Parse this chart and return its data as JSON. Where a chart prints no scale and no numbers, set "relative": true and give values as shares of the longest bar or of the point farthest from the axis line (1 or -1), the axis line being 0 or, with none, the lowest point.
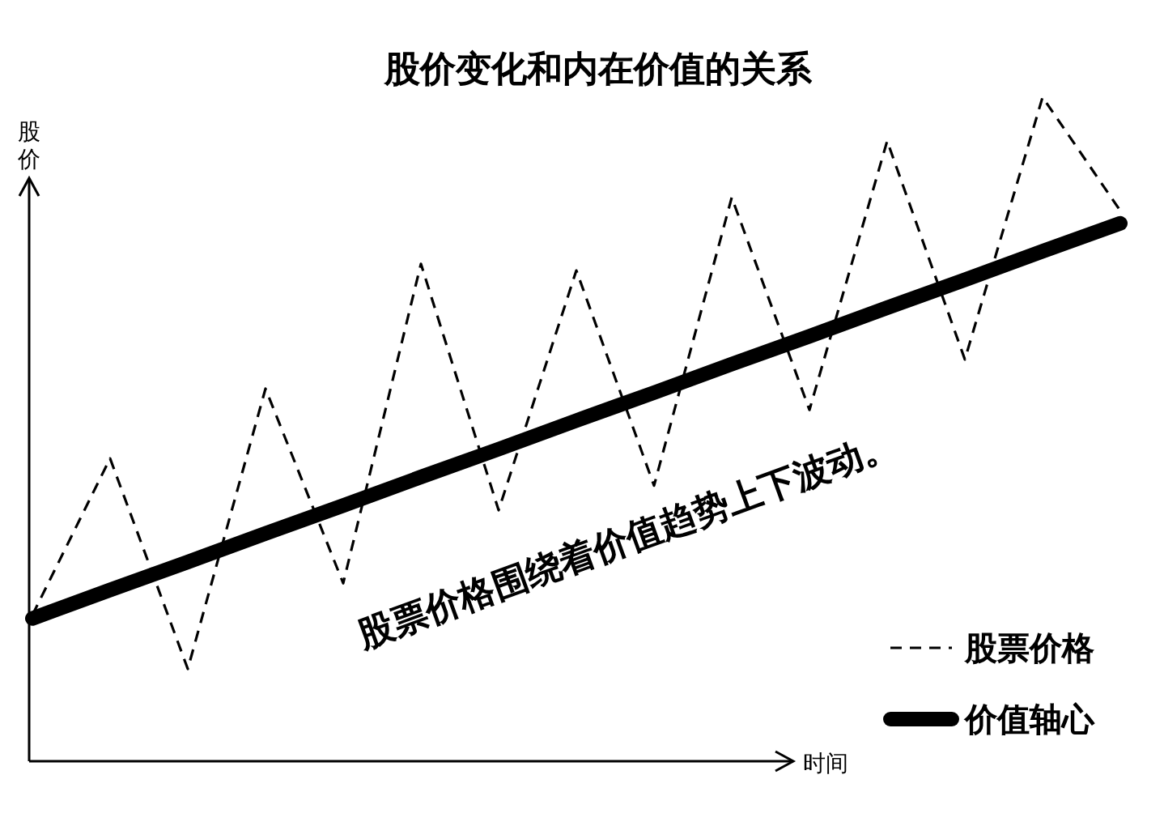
{
  "chart_data": {
    "type": "line",
    "title": "股价变化和内在价值的关系",
    "xlabel": "时间",
    "ylabel": "股价",
    "relative": true,
    "legend": "bottom right",
    "categories": [
      null,
      null,
      null,
      null,
      null,
      null,
      null,
      null,
      null,
      null,
      null,
      null,
      null,
      null,
      null
    ],
    "annotations": [
      "股票价格围绕着价值趋势上下波动。"
    ],
    "series": [
      {
        "name": "股票价格",
        "color": "#000000",
        "line_style": "dashed",
        "values": [
          0.22,
          0.456,
          0.139,
          0.561,
          0.268,
          0.749,
          0.378,
          0.739,
          0.415,
          0.849,
          0.529,
          0.934,
          0.605,
          1,
          0.829
        ]
      },
      {
        "name": "价值轴心",
        "color": "#000000",
        "line_style": "solid",
        "values": [
          0.215,
          0.258,
          0.3,
          0.343,
          0.385,
          0.428,
          0.47,
          0.513,
          0.555,
          0.598,
          0.64,
          0.683,
          0.725,
          0.768,
          0.81
        ]
      }
    ]
  }
}
